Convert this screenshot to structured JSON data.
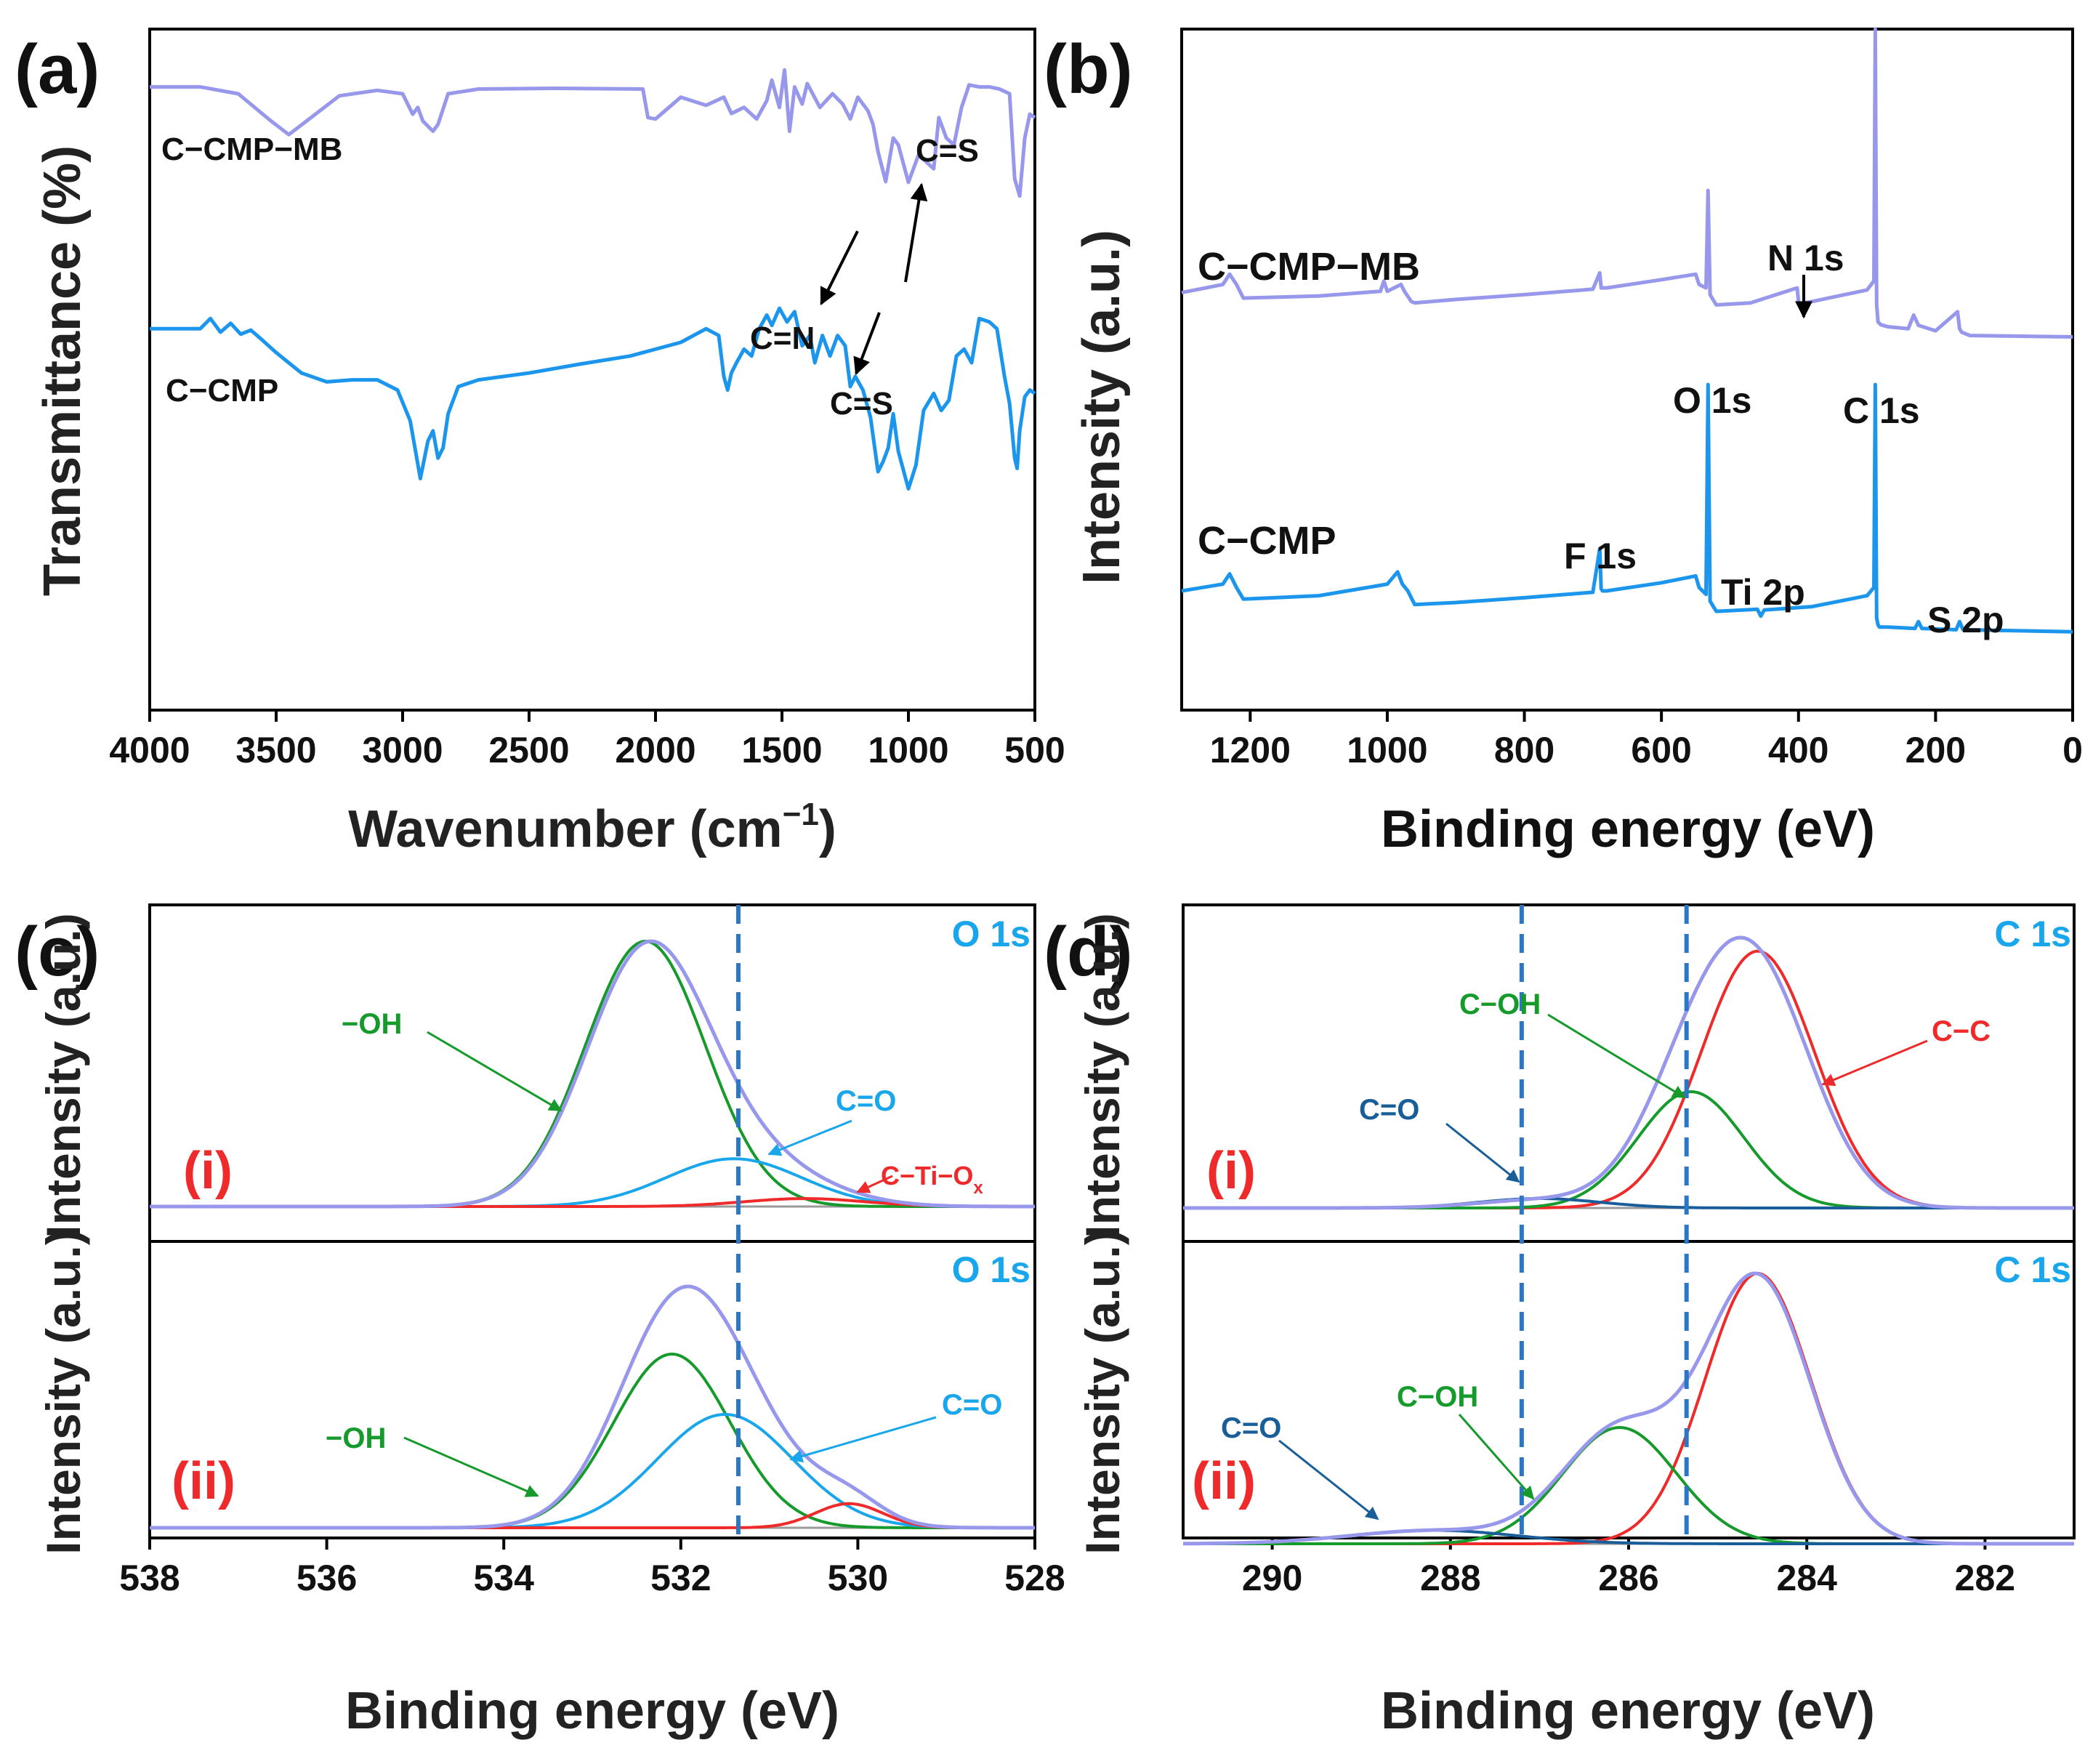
{
  "colors": {
    "lavender": "#9797EC",
    "blue": "#1C96EC",
    "green": "#159A2B",
    "red": "#EE2A2A",
    "navy": "#1A5E99",
    "cyan": "#19A6EB",
    "dash": "#2A78C5",
    "gray": "#9A9A9A",
    "axis": "#000000"
  },
  "chart_data": [
    {
      "panel": "a",
      "panel_label": "(a)",
      "type": "line",
      "title": "",
      "xlabel": "Wavenumber (cm",
      "xlabel_sup": "−1",
      "xlabel_close": ")",
      "ylabel": "Transmittance (%)",
      "xlim": [
        4000,
        500
      ],
      "ylim": [
        0,
        100
      ],
      "xticks": [
        4000,
        3500,
        3000,
        2500,
        2000,
        1500,
        1000,
        500
      ],
      "xtick_labels": [
        "4000",
        "3500",
        "3000",
        "2500",
        "2000",
        "1500",
        "1000",
        "500"
      ],
      "series": [
        {
          "name": "C−CMP−MB",
          "color": "lavender",
          "x": [
            4000,
            3800,
            3650,
            3520,
            3450,
            3380,
            3250,
            3100,
            3000,
            2960,
            2940,
            2920,
            2880,
            2860,
            2820,
            2700,
            2400,
            2050,
            2030,
            2000,
            1900,
            1800,
            1730,
            1700,
            1650,
            1600,
            1560,
            1540,
            1510,
            1490,
            1470,
            1450,
            1420,
            1400,
            1350,
            1300,
            1260,
            1230,
            1200,
            1160,
            1140,
            1120,
            1090,
            1060,
            1040,
            1000,
            960,
            900,
            880,
            850,
            820,
            790,
            760,
            720,
            680,
            640,
            600,
            580,
            560,
            540,
            520,
            500
          ],
          "y": [
            91.5,
            91.5,
            90.5,
            86.5,
            84.5,
            86.5,
            90.2,
            91.0,
            90.5,
            87.5,
            88.5,
            86.5,
            85.0,
            86.0,
            90.5,
            91.2,
            91.3,
            91.2,
            87.0,
            86.8,
            90.0,
            88.8,
            90.0,
            87.6,
            88.5,
            86.8,
            89.5,
            92.5,
            88.5,
            94.0,
            85.0,
            91.5,
            89.0,
            92.0,
            88.5,
            90.5,
            89.0,
            86.8,
            90.0,
            88.0,
            86.0,
            82.0,
            77.6,
            84.0,
            83.0,
            77.5,
            81.5,
            79.5,
            87.0,
            84.0,
            83.0,
            88.5,
            91.8,
            91.5,
            91.5,
            91.2,
            90.5,
            78.0,
            75.5,
            84.0,
            87.5,
            87.0
          ]
        },
        {
          "name": "C−CMP",
          "color": "blue",
          "x": [
            4000,
            3800,
            3760,
            3720,
            3680,
            3640,
            3600,
            3560,
            3500,
            3400,
            3300,
            3200,
            3100,
            3020,
            2970,
            2930,
            2900,
            2880,
            2860,
            2840,
            2820,
            2780,
            2700,
            2500,
            2300,
            2100,
            1900,
            1800,
            1750,
            1730,
            1715,
            1700,
            1680,
            1650,
            1620,
            1590,
            1560,
            1540,
            1510,
            1480,
            1450,
            1420,
            1390,
            1370,
            1340,
            1310,
            1280,
            1250,
            1230,
            1210,
            1180,
            1150,
            1120,
            1100,
            1080,
            1060,
            1040,
            1000,
            970,
            940,
            900,
            870,
            840,
            810,
            780,
            750,
            720,
            680,
            650,
            620,
            600,
            580,
            570,
            560,
            540,
            520,
            500
          ],
          "y": [
            56.0,
            56.0,
            57.5,
            55.5,
            56.8,
            55.2,
            55.8,
            54.5,
            52.5,
            49.5,
            48.2,
            48.5,
            48.5,
            47.0,
            42.5,
            34.0,
            39.5,
            41.0,
            37.0,
            38.5,
            43.5,
            47.5,
            48.5,
            49.5,
            50.8,
            52.0,
            54.0,
            56.0,
            55.0,
            49.0,
            47.0,
            49.5,
            51.0,
            53.0,
            52.0,
            56.0,
            58.0,
            56.5,
            59.0,
            57.0,
            58.5,
            53.5,
            55.0,
            51.0,
            55.0,
            52.0,
            55.0,
            53.5,
            47.5,
            49.0,
            47.0,
            43.0,
            35.0,
            36.5,
            38.5,
            43.5,
            38.0,
            32.5,
            36.0,
            44.0,
            46.5,
            44.0,
            45.5,
            52.0,
            53.0,
            51.0,
            57.5,
            57.0,
            56.0,
            49.0,
            45.0,
            37.0,
            35.5,
            41.0,
            46.0,
            47.0,
            46.5
          ]
        }
      ],
      "annotations": [
        "C=S",
        "C=N",
        "C=S"
      ]
    },
    {
      "panel": "b",
      "panel_label": "(b)",
      "type": "line",
      "title": "",
      "xlabel": "Binding energy (eV)",
      "ylabel": "Intensity (a.u.)",
      "xlim": [
        1300,
        0
      ],
      "ylim": [
        0,
        100
      ],
      "xticks": [
        1200,
        1000,
        800,
        600,
        400,
        200,
        0
      ],
      "xtick_labels": [
        "1200",
        "1000",
        "800",
        "600",
        "400",
        "200",
        "0"
      ],
      "series": [
        {
          "name": "C−CMP−MB",
          "color": "lavender",
          "x": [
            1300,
            1240,
            1230,
            1220,
            1210,
            1100,
            1010,
            1005,
            1000,
            980,
            975,
            965,
            960,
            900,
            800,
            700,
            690,
            688,
            686,
            680,
            600,
            550,
            545,
            535,
            532,
            529,
            520,
            470,
            402,
            400,
            398,
            380,
            300,
            290,
            288,
            286,
            284,
            282,
            280,
            270,
            240,
            232,
            225,
            200,
            168,
            165,
            162,
            150,
            0
          ],
          "y": [
            61.3,
            62.5,
            64.0,
            62.5,
            60.5,
            60.8,
            61.5,
            63.0,
            61.5,
            62.5,
            61.5,
            60.0,
            59.8,
            60.3,
            61.0,
            61.8,
            64.2,
            62.0,
            62.0,
            62.0,
            63.2,
            64.0,
            62.5,
            62.0,
            76.3,
            61.0,
            59.5,
            59.8,
            62.0,
            60.0,
            59.7,
            60.0,
            61.7,
            63.0,
            100.0,
            59.5,
            57.0,
            56.8,
            56.6,
            56.3,
            56.0,
            58.0,
            56.5,
            55.7,
            58.5,
            56.0,
            55.5,
            55.0,
            54.8
          ]
        },
        {
          "name": "C−CMP",
          "color": "blue",
          "x": [
            1300,
            1240,
            1230,
            1220,
            1210,
            1100,
            1000,
            985,
            978,
            970,
            960,
            900,
            800,
            700,
            690,
            688,
            686,
            680,
            600,
            550,
            545,
            535,
            532,
            529,
            520,
            460,
            455,
            450,
            380,
            300,
            290,
            288,
            286,
            284,
            282,
            270,
            230,
            225,
            220,
            170,
            165,
            160,
            0
          ],
          "y": [
            17.5,
            18.5,
            20.0,
            18.0,
            16.3,
            16.8,
            18.5,
            20.3,
            18.5,
            17.5,
            15.5,
            15.8,
            16.5,
            17.3,
            23.7,
            17.8,
            17.5,
            17.5,
            18.7,
            19.7,
            18.0,
            17.0,
            47.8,
            16.0,
            14.5,
            14.8,
            13.8,
            14.7,
            15.2,
            16.8,
            18.0,
            47.8,
            13.5,
            12.5,
            12.2,
            12.2,
            12.0,
            13.0,
            12.0,
            11.8,
            13.0,
            11.8,
            11.5
          ]
        }
      ],
      "annotations": [
        "C−CMP−MB",
        "C−CMP",
        "N 1s",
        "O 1s",
        "C 1s",
        "F 1s",
        "Ti 2p",
        "S 2p"
      ]
    },
    {
      "panel": "c",
      "panel_label": "(c)",
      "type": "line",
      "title": "O 1s",
      "xlabel": "Binding energy (eV)",
      "ylabel": "Intensity (a.u.)",
      "xlim": [
        538,
        528
      ],
      "xticks": [
        538,
        536,
        534,
        532,
        530,
        528
      ],
      "xtick_labels": [
        "538",
        "536",
        "534",
        "532",
        "530",
        "528"
      ],
      "dashed_lines": [
        531.35
      ],
      "subpanels": [
        {
          "label": "(i)",
          "element": "O 1s",
          "background": 0.0,
          "components": [
            {
              "name": "−OH",
              "color": "green",
              "center": 532.4,
              "height": 1.0,
              "fwhm": 1.6
            },
            {
              "name": "C=O",
              "color": "cyan",
              "center": 531.4,
              "height": 0.18,
              "fwhm": 1.8
            },
            {
              "name": "C−Ti−Ox",
              "color": "red",
              "center": 530.6,
              "height": 0.03,
              "fwhm": 1.6
            }
          ],
          "envelope_color": "lavender",
          "baseline_color": "gray"
        },
        {
          "label": "(ii)",
          "element": "O 1s",
          "background": 0.0,
          "components": [
            {
              "name": "−OH",
              "color": "green",
              "center": 532.1,
              "height": 0.72,
              "fwhm": 1.55
            },
            {
              "name": "C=O",
              "color": "cyan",
              "center": 531.5,
              "height": 0.47,
              "fwhm": 1.8
            },
            {
              "name": "C−Ti−Ox",
              "color": "red",
              "center": 530.1,
              "height": 0.1,
              "fwhm": 0.9
            }
          ],
          "envelope_color": "lavender",
          "baseline_color": "gray"
        }
      ],
      "annotations": {
        "oh": "−OH",
        "co": "C=O",
        "ctio": "C−Ti−O",
        "ctio_sub": "x"
      }
    },
    {
      "panel": "d",
      "panel_label": "(d)",
      "type": "line",
      "title": "C 1s",
      "xlabel": "Binding energy (eV)",
      "ylabel": "Intensity (a.u.)",
      "xlim": [
        291,
        281
      ],
      "xticks": [
        290,
        288,
        286,
        284,
        282
      ],
      "xtick_labels": [
        "290",
        "288",
        "286",
        "284",
        "282"
      ],
      "dashed_lines": [
        287.2,
        285.35
      ],
      "subpanels": [
        {
          "label": "(i)",
          "element": "C 1s",
          "components": [
            {
              "name": "C−C",
              "color": "red",
              "center": 284.55,
              "height": 0.95,
              "fwhm": 1.5
            },
            {
              "name": "C−OH",
              "color": "green",
              "center": 285.3,
              "height": 0.43,
              "fwhm": 1.4
            },
            {
              "name": "C=O",
              "color": "navy",
              "center": 287.0,
              "height": 0.035,
              "fwhm": 1.6
            }
          ],
          "envelope_color": "lavender",
          "baseline_color": "gray"
        },
        {
          "label": "(ii)",
          "element": "C 1s",
          "components": [
            {
              "name": "C−C",
              "color": "red",
              "center": 284.55,
              "height": 1.0,
              "fwhm": 1.4
            },
            {
              "name": "C−OH",
              "color": "green",
              "center": 286.1,
              "height": 0.43,
              "fwhm": 1.5
            },
            {
              "name": "C=O",
              "color": "navy",
              "center": 288.2,
              "height": 0.05,
              "fwhm": 2.2
            }
          ],
          "envelope_color": "lavender",
          "baseline_color": "gray"
        }
      ],
      "annotations": {
        "coh": "C−OH",
        "co": "C=O",
        "cc": "C−C"
      }
    }
  ]
}
